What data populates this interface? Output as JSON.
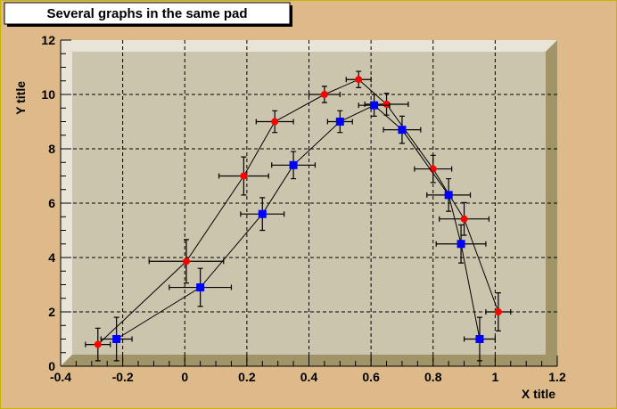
{
  "chart_data": {
    "type": "scatter",
    "title": "Several graphs in the same pad",
    "xlabel": "X title",
    "ylabel": "Y title",
    "xlim": [
      -0.4,
      1.2
    ],
    "ylim": [
      0,
      12
    ],
    "xticks": [
      "-0.4",
      "-0.2",
      "0",
      "0.2",
      "0.4",
      "0.6",
      "0.8",
      "1",
      "1.2"
    ],
    "xtick_values": [
      -0.4,
      -0.2,
      0,
      0.2,
      0.4,
      0.6,
      0.8,
      1,
      1.2
    ],
    "yticks": [
      "0",
      "2",
      "4",
      "6",
      "8",
      "10",
      "12"
    ],
    "ytick_values": [
      0,
      2,
      4,
      6,
      8,
      10,
      12
    ],
    "grid": true,
    "series": [
      {
        "color": "#ff0000",
        "marker": "circle",
        "x": [
          -0.28,
          0.005,
          0.19,
          0.29,
          0.45,
          0.56,
          0.65,
          0.8,
          0.9,
          1.01
        ],
        "y": [
          0.8,
          3.86,
          7,
          9,
          10,
          10.55,
          9.64,
          7.26,
          5.42,
          2
        ],
        "ex": [
          0.04,
          0.12,
          0.08,
          0.06,
          0.05,
          0.04,
          0.07,
          0.06,
          0.08,
          0.04
        ],
        "ey": [
          0.6,
          0.8,
          0.7,
          0.4,
          0.3,
          0.3,
          0.4,
          0.5,
          0.6,
          0.7
        ]
      },
      {
        "color": "#0000ff",
        "marker": "square",
        "x": [
          -0.22,
          0.05,
          0.25,
          0.35,
          0.5,
          0.61,
          0.7,
          0.85,
          0.89,
          0.95
        ],
        "y": [
          1,
          2.9,
          5.6,
          7.4,
          9,
          9.6,
          8.7,
          6.3,
          4.5,
          1
        ],
        "ex": [
          0.05,
          0.1,
          0.07,
          0.07,
          0.04,
          0.05,
          0.06,
          0.07,
          0.08,
          0.05
        ],
        "ey": [
          0.8,
          0.7,
          0.6,
          0.5,
          0.4,
          0.4,
          0.5,
          0.6,
          0.7,
          0.8
        ]
      }
    ],
    "colors": {
      "pad": "#deba8a",
      "frame": "#cbc5ad",
      "floor": "#a09468",
      "wall": "#e8e4d8"
    }
  }
}
